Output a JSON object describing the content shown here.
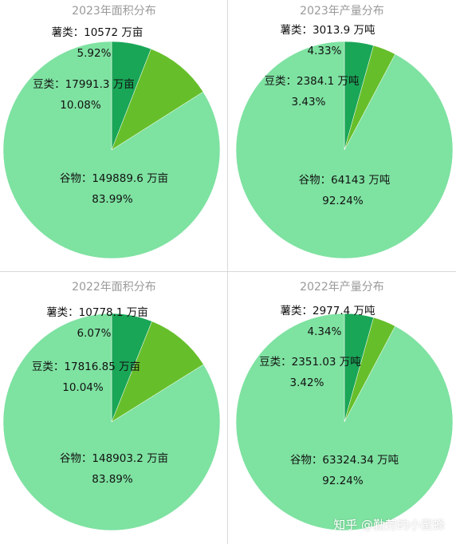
{
  "chart_data": [
    {
      "type": "pie",
      "title": "2023年面积分布",
      "labels": [
        {
          "name": "谷物：",
          "value": "149889.6 万亩",
          "percent": "83.99%"
        },
        {
          "name": "豆类：",
          "value": "17991.3 万亩",
          "percent": "10.08%"
        },
        {
          "name": "薯类：",
          "value": "10572 万亩",
          "percent": "5.92%"
        }
      ],
      "values": [
        149889.6,
        17991.3,
        10572
      ],
      "percents": [
        83.99,
        10.08,
        5.92
      ],
      "colors": [
        "#7ee2a1",
        "#66bf2a",
        "#1aa657"
      ]
    },
    {
      "type": "pie",
      "title": "2023年产量分布",
      "labels": [
        {
          "name": "谷物：",
          "value": "64143 万吨",
          "percent": "92.24%"
        },
        {
          "name": "豆类：",
          "value": "2384.1 万吨",
          "percent": "3.43%"
        },
        {
          "name": "薯类：",
          "value": "3013.9 万吨",
          "percent": "4.33%"
        }
      ],
      "values": [
        64143,
        2384.1,
        3013.9
      ],
      "percents": [
        92.24,
        3.43,
        4.33
      ],
      "colors": [
        "#7ee2a1",
        "#66bf2a",
        "#1aa657"
      ]
    },
    {
      "type": "pie",
      "title": "2022年面积分布",
      "labels": [
        {
          "name": "谷物：",
          "value": "148903.2 万亩",
          "percent": "83.89%"
        },
        {
          "name": "豆类：",
          "value": "17816.85 万亩",
          "percent": "10.04%"
        },
        {
          "name": "薯类：",
          "value": "10778.1 万亩",
          "percent": "6.07%"
        }
      ],
      "values": [
        148903.2,
        17816.85,
        10778.1
      ],
      "percents": [
        83.89,
        10.04,
        6.07
      ],
      "colors": [
        "#7ee2a1",
        "#66bf2a",
        "#1aa657"
      ]
    },
    {
      "type": "pie",
      "title": "2022年产量分布",
      "labels": [
        {
          "name": "谷物：",
          "value": "63324.34 万吨",
          "percent": "92.24%"
        },
        {
          "name": "豆类：",
          "value": "2351.03 万吨",
          "percent": "3.42%"
        },
        {
          "name": "薯类：",
          "value": "2977.4 万吨",
          "percent": "4.34%"
        }
      ],
      "values": [
        63324.34,
        2351.03,
        2977.4
      ],
      "percents": [
        92.24,
        3.42,
        4.34
      ],
      "colors": [
        "#7ee2a1",
        "#66bf2a",
        "#1aa657"
      ]
    }
  ],
  "watermark": "知乎 @勤劳的小蜜蜂"
}
